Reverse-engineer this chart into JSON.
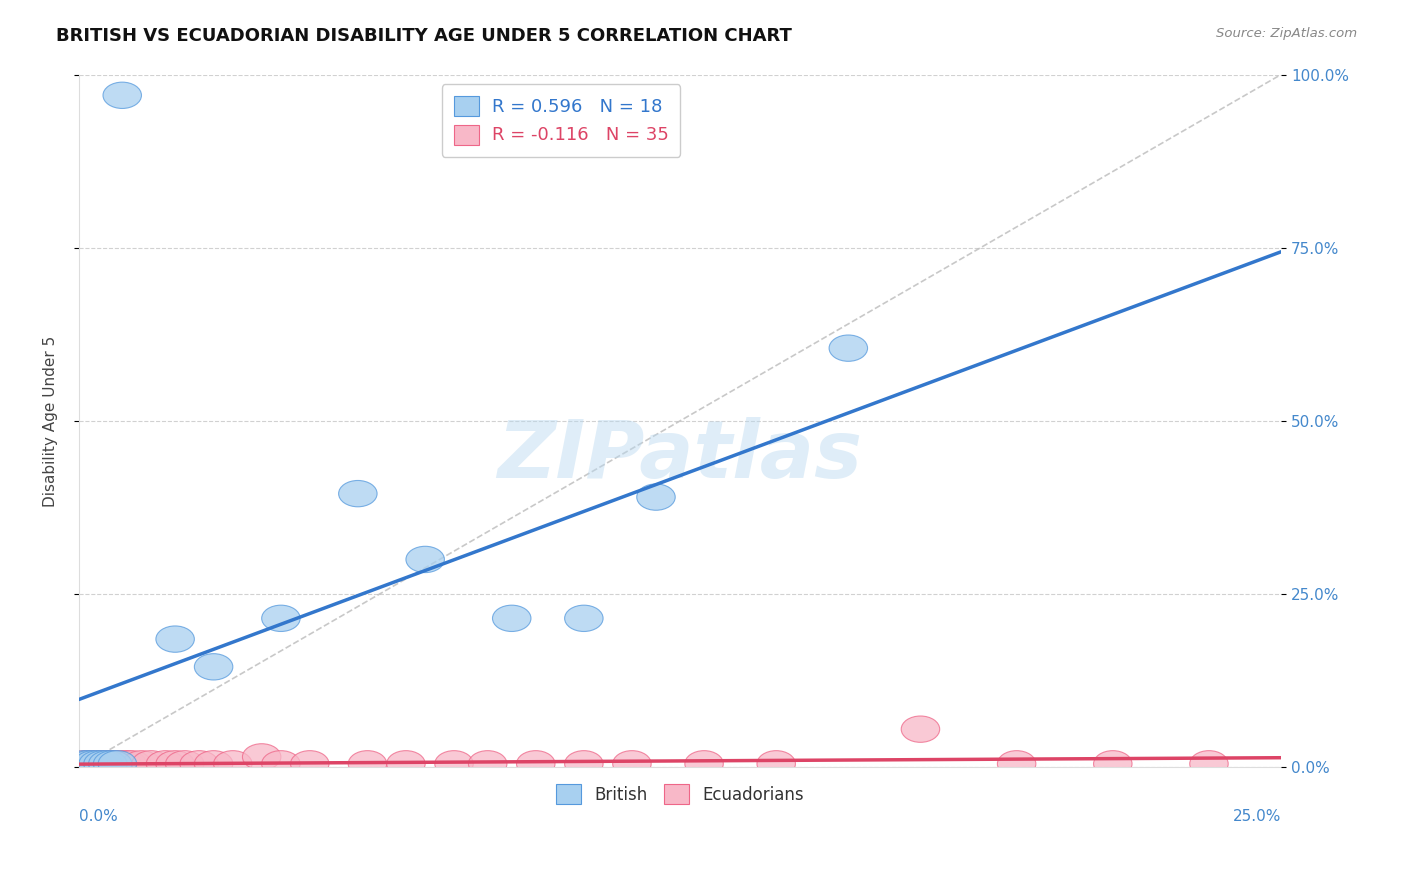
{
  "title": "BRITISH VS ECUADORIAN DISABILITY AGE UNDER 5 CORRELATION CHART",
  "source": "Source: ZipAtlas.com",
  "ylabel": "Disability Age Under 5",
  "british_r": "0.596",
  "british_n": "18",
  "ecuadorian_r": "-0.116",
  "ecuadorian_n": "35",
  "xlim": [
    0.0,
    0.25
  ],
  "ylim": [
    0.0,
    1.0
  ],
  "yticks": [
    0.0,
    0.25,
    0.5,
    0.75,
    1.0
  ],
  "ytick_labels_right": [
    "0.0%",
    "25.0%",
    "50.0%",
    "75.0%",
    "100.0%"
  ],
  "background_color": "#ffffff",
  "grid_color": "#cccccc",
  "british_color": "#a8d0f0",
  "british_edge_color": "#5599dd",
  "ecuadorian_color": "#f8b8c8",
  "ecuadorian_edge_color": "#ee6688",
  "trend_british_color": "#3377cc",
  "trend_ecuadorian_color": "#dd4466",
  "diagonal_color": "#bbbbbb",
  "watermark": "ZIPatlas",
  "title_fontsize": 13,
  "axis_label_fontsize": 11,
  "tick_fontsize": 11,
  "legend_fontsize": 12,
  "british_x": [
    0.001,
    0.002,
    0.003,
    0.004,
    0.005,
    0.006,
    0.007,
    0.008,
    0.009,
    0.02,
    0.028,
    0.042,
    0.058,
    0.072,
    0.09,
    0.105,
    0.12,
    0.16
  ],
  "british_y": [
    0.005,
    0.005,
    0.005,
    0.005,
    0.005,
    0.005,
    0.005,
    0.005,
    0.97,
    0.185,
    0.145,
    0.215,
    0.395,
    0.3,
    0.215,
    0.215,
    0.39,
    0.605
  ],
  "ecuadorian_x": [
    0.001,
    0.002,
    0.003,
    0.004,
    0.005,
    0.006,
    0.007,
    0.008,
    0.009,
    0.01,
    0.011,
    0.013,
    0.015,
    0.018,
    0.02,
    0.022,
    0.025,
    0.028,
    0.032,
    0.038,
    0.042,
    0.048,
    0.06,
    0.068,
    0.078,
    0.085,
    0.095,
    0.105,
    0.115,
    0.13,
    0.145,
    0.175,
    0.195,
    0.215,
    0.235
  ],
  "ecuadorian_y": [
    0.005,
    0.005,
    0.005,
    0.005,
    0.005,
    0.005,
    0.005,
    0.005,
    0.005,
    0.005,
    0.005,
    0.005,
    0.005,
    0.005,
    0.005,
    0.005,
    0.005,
    0.005,
    0.005,
    0.015,
    0.005,
    0.005,
    0.005,
    0.005,
    0.005,
    0.005,
    0.005,
    0.005,
    0.005,
    0.005,
    0.005,
    0.055,
    0.005,
    0.005,
    0.005
  ]
}
